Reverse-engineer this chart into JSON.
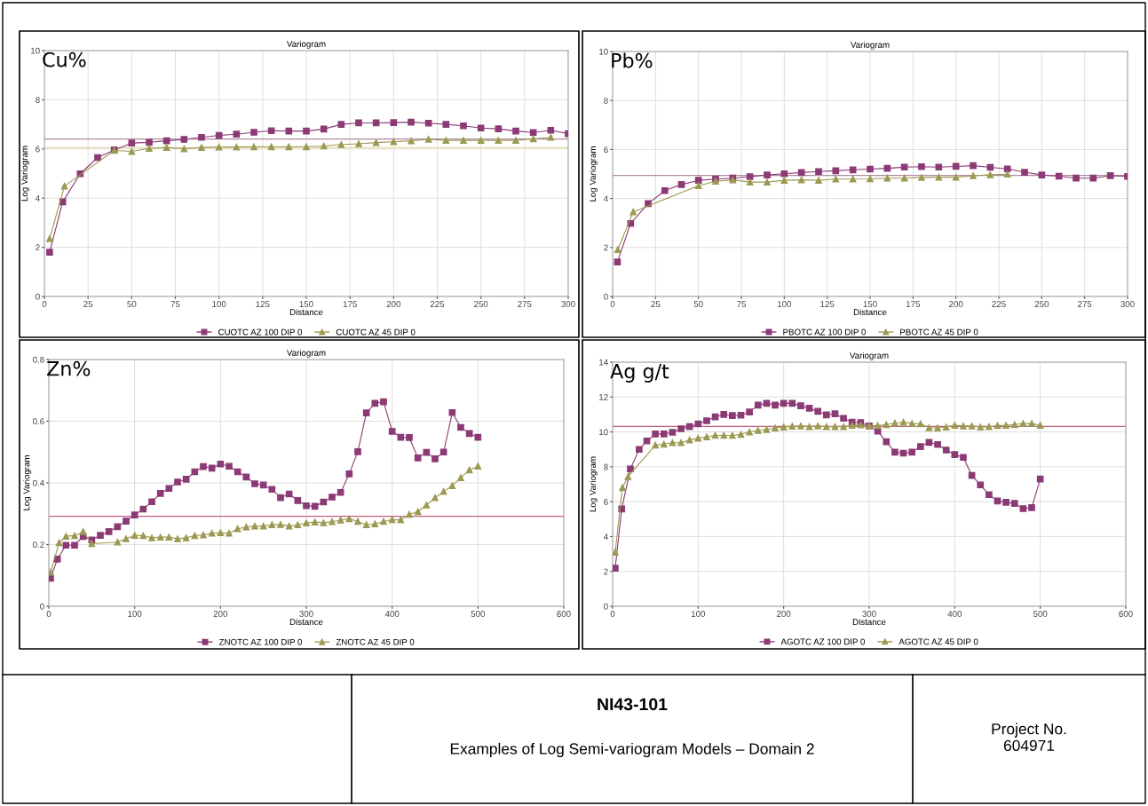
{
  "chart_data": [
    {
      "type": "line",
      "title": "Variogram",
      "xlabel": "Distance",
      "ylabel": "Log Variogram",
      "annotations": [
        "Cu%"
      ],
      "xlim": [
        0,
        300
      ],
      "xticks": [
        0,
        25,
        50,
        75,
        100,
        125,
        150,
        175,
        200,
        225,
        250,
        275,
        300
      ],
      "ylim": [
        0,
        10
      ],
      "yticks": [
        0,
        2,
        4,
        6,
        8,
        10
      ],
      "grid": true,
      "legend": "bottom",
      "line_style": "solid",
      "series": [
        {
          "name": "CUOTC AZ 100 DIP 0",
          "color": "#8b3a75",
          "marker": "square",
          "x": [
            3,
            10.5,
            20.5,
            30.5,
            40,
            50,
            60,
            70,
            80,
            90,
            100,
            110,
            120,
            130,
            140,
            150,
            160,
            170,
            180,
            190,
            200,
            210,
            220,
            230,
            240,
            250,
            260,
            270,
            280,
            290,
            300
          ],
          "values": [
            1.8,
            3.85,
            4.99,
            5.65,
            5.96,
            6.24,
            6.27,
            6.33,
            6.39,
            6.47,
            6.55,
            6.6,
            6.68,
            6.74,
            6.73,
            6.73,
            6.81,
            7.0,
            7.06,
            7.06,
            7.07,
            7.09,
            7.05,
            7.0,
            6.94,
            6.85,
            6.82,
            6.73,
            6.67,
            6.76,
            6.62
          ]
        },
        {
          "name": "CUOTC AZ 45 DIP 0",
          "color": "#9c9a52",
          "marker": "triangle",
          "x": [
            3,
            11.5,
            40,
            50,
            60,
            70,
            80,
            90,
            100,
            110,
            120,
            130,
            140,
            150,
            160,
            170,
            180,
            190,
            200,
            210,
            220,
            230,
            240,
            250,
            260,
            270,
            280,
            290
          ],
          "values": [
            2.35,
            4.49,
            5.94,
            5.9,
            6.02,
            6.06,
            6.0,
            6.06,
            6.08,
            6.08,
            6.09,
            6.09,
            6.09,
            6.09,
            6.12,
            6.18,
            6.21,
            6.26,
            6.29,
            6.33,
            6.39,
            6.35,
            6.35,
            6.35,
            6.35,
            6.35,
            6.41,
            6.47
          ]
        }
      ],
      "ref_lines": [
        {
          "axis": "y",
          "value": 6.4,
          "color": "#b08aa0"
        },
        {
          "axis": "y",
          "value": 6.05,
          "color": "#e6dca8"
        }
      ]
    },
    {
      "type": "line",
      "title": "Variogram",
      "xlabel": "Distance",
      "ylabel": "Log Variogram",
      "annotations": [
        "Pb%"
      ],
      "xlim": [
        0,
        300
      ],
      "xticks": [
        0,
        25,
        50,
        75,
        100,
        125,
        150,
        175,
        200,
        225,
        250,
        275,
        300
      ],
      "ylim": [
        0,
        10
      ],
      "yticks": [
        0,
        2,
        4,
        6,
        8,
        10
      ],
      "grid": true,
      "legend": "bottom",
      "line_style": "solid",
      "series": [
        {
          "name": "PBOTC AZ 100 DIP 0",
          "color": "#8b3a75",
          "marker": "square",
          "x": [
            2.8,
            10.5,
            20.7,
            30.4,
            40.1,
            50,
            60,
            70,
            80,
            90,
            100,
            110,
            120,
            130,
            140,
            150,
            160,
            170,
            180,
            190,
            200,
            210,
            220,
            230,
            240,
            250,
            260,
            270,
            280,
            290,
            300
          ],
          "values": [
            1.41,
            2.98,
            3.79,
            4.32,
            4.57,
            4.74,
            4.79,
            4.83,
            4.89,
            4.96,
            5.01,
            5.06,
            5.1,
            5.13,
            5.17,
            5.2,
            5.23,
            5.28,
            5.3,
            5.28,
            5.31,
            5.34,
            5.27,
            5.21,
            5.07,
            4.96,
            4.91,
            4.83,
            4.83,
            4.93,
            4.9
          ]
        },
        {
          "name": "PBOTC AZ 45 DIP 0",
          "color": "#9c9a52",
          "marker": "triangle",
          "x": [
            3,
            12,
            50,
            60,
            70,
            80,
            90,
            100,
            110,
            120,
            130,
            140,
            150,
            160,
            170,
            180,
            190,
            200,
            210,
            220,
            230
          ],
          "values": [
            1.91,
            3.45,
            4.52,
            4.7,
            4.76,
            4.67,
            4.67,
            4.74,
            4.76,
            4.74,
            4.79,
            4.79,
            4.8,
            4.83,
            4.83,
            4.86,
            4.87,
            4.87,
            4.93,
            4.97,
            4.99
          ]
        }
      ],
      "ref_lines": [
        {
          "axis": "y",
          "value": 4.94,
          "color": "#b08aa0"
        }
      ]
    },
    {
      "type": "line",
      "title": "Variogram",
      "xlabel": "Distance",
      "ylabel": "Log Variogram",
      "annotations": [
        "Zn%"
      ],
      "xlim": [
        0,
        600
      ],
      "xticks": [
        0,
        100,
        200,
        300,
        400,
        500,
        600
      ],
      "ylim": [
        0,
        0.8
      ],
      "yticks": [
        0,
        0.2,
        0.4,
        0.6,
        0.8
      ],
      "grid": true,
      "legend": "bottom",
      "line_style": "solid",
      "series": [
        {
          "name": "ZNOTC AZ 100 DIP 0",
          "color": "#8b3a75",
          "marker": "square",
          "x": [
            2,
            10,
            20,
            30,
            40,
            50,
            60,
            70,
            80,
            90,
            100,
            110,
            120,
            130,
            140,
            150,
            160,
            170,
            180,
            190,
            200,
            210,
            220,
            230,
            240,
            250,
            260,
            270,
            280,
            290,
            300,
            310,
            320,
            330,
            340,
            350,
            360,
            370,
            380,
            390,
            400,
            410,
            420,
            430,
            440,
            450,
            460,
            470,
            480,
            490,
            500
          ],
          "values": [
            0.091,
            0.153,
            0.198,
            0.198,
            0.226,
            0.215,
            0.23,
            0.242,
            0.258,
            0.276,
            0.296,
            0.315,
            0.339,
            0.366,
            0.382,
            0.403,
            0.412,
            0.436,
            0.453,
            0.448,
            0.461,
            0.454,
            0.436,
            0.419,
            0.397,
            0.393,
            0.379,
            0.352,
            0.364,
            0.343,
            0.326,
            0.324,
            0.338,
            0.354,
            0.369,
            0.429,
            0.501,
            0.627,
            0.658,
            0.663,
            0.567,
            0.548,
            0.547,
            0.481,
            0.499,
            0.478,
            0.5,
            0.628,
            0.58,
            0.56,
            0.548
          ]
        },
        {
          "name": "ZNOTC AZ 45 DIP 0",
          "color": "#9c9a52",
          "marker": "triangle",
          "x": [
            2,
            12,
            20,
            30,
            40,
            50,
            80,
            90,
            100,
            110,
            120,
            130,
            140,
            150,
            160,
            170,
            180,
            190,
            200,
            210,
            220,
            230,
            240,
            250,
            260,
            270,
            280,
            290,
            300,
            310,
            320,
            330,
            340,
            350,
            360,
            370,
            380,
            390,
            400,
            410,
            420,
            430,
            440,
            450,
            460,
            470,
            480,
            490,
            500
          ],
          "values": [
            0.11,
            0.206,
            0.227,
            0.229,
            0.242,
            0.203,
            0.208,
            0.219,
            0.23,
            0.229,
            0.222,
            0.224,
            0.224,
            0.219,
            0.222,
            0.229,
            0.231,
            0.237,
            0.238,
            0.237,
            0.251,
            0.257,
            0.26,
            0.26,
            0.264,
            0.265,
            0.26,
            0.264,
            0.27,
            0.273,
            0.271,
            0.274,
            0.279,
            0.284,
            0.275,
            0.264,
            0.267,
            0.275,
            0.281,
            0.28,
            0.298,
            0.307,
            0.328,
            0.352,
            0.372,
            0.391,
            0.417,
            0.442,
            0.454
          ]
        }
      ],
      "ref_lines": [
        {
          "axis": "y",
          "value": 0.292,
          "color": "#c06080"
        }
      ]
    },
    {
      "type": "line",
      "title": "Variogram",
      "xlabel": "Distance",
      "ylabel": "Log Variogram",
      "annotations": [
        "Ag g/t"
      ],
      "xlim": [
        0,
        600
      ],
      "xticks": [
        0,
        100,
        200,
        300,
        400,
        500,
        600
      ],
      "ylim": [
        0,
        14
      ],
      "yticks": [
        0,
        2,
        4,
        6,
        8,
        10,
        12,
        14
      ],
      "grid": true,
      "legend": "bottom",
      "line_style": "solid",
      "series": [
        {
          "name": "AGOTC AZ 100 DIP 0",
          "color": "#8b3a75",
          "marker": "square",
          "x": [
            3,
            10.6,
            20.8,
            31,
            40,
            50,
            60,
            70,
            80,
            90,
            100,
            110,
            120,
            130,
            140,
            150,
            160,
            170,
            180,
            190,
            200,
            210,
            220,
            230,
            240,
            250,
            260,
            270,
            280,
            290,
            300,
            310,
            320,
            330,
            340,
            350,
            360,
            370,
            380,
            390,
            400,
            410,
            420,
            430,
            440,
            450,
            460,
            470,
            480,
            490,
            500
          ],
          "values": [
            2.18,
            5.58,
            7.88,
            9.0,
            9.48,
            9.88,
            9.88,
            9.98,
            10.18,
            10.3,
            10.46,
            10.64,
            10.86,
            11.0,
            10.94,
            10.96,
            11.14,
            11.54,
            11.64,
            11.54,
            11.64,
            11.64,
            11.5,
            11.36,
            11.18,
            10.98,
            11.04,
            10.78,
            10.56,
            10.54,
            10.34,
            10.04,
            9.44,
            8.84,
            8.78,
            8.84,
            9.16,
            9.4,
            9.28,
            8.96,
            8.7,
            8.54,
            7.5,
            6.96,
            6.4,
            6.04,
            5.96,
            5.9,
            5.6,
            5.66,
            7.3
          ]
        },
        {
          "name": "AGOTC AZ 45 DIP 0",
          "color": "#9c9a52",
          "marker": "triangle",
          "x": [
            3,
            11.4,
            18,
            50,
            60,
            70,
            80,
            90,
            100,
            110,
            120,
            130,
            140,
            150,
            160,
            170,
            180,
            190,
            200,
            210,
            220,
            230,
            240,
            250,
            260,
            270,
            280,
            290,
            300,
            310,
            320,
            330,
            340,
            350,
            360,
            370,
            380,
            390,
            400,
            410,
            420,
            430,
            440,
            450,
            460,
            470,
            480,
            490,
            500
          ],
          "values": [
            3.1,
            6.8,
            7.44,
            9.24,
            9.3,
            9.38,
            9.38,
            9.54,
            9.64,
            9.72,
            9.8,
            9.8,
            9.8,
            9.86,
            10.0,
            10.08,
            10.14,
            10.22,
            10.28,
            10.32,
            10.34,
            10.3,
            10.34,
            10.3,
            10.3,
            10.3,
            10.38,
            10.4,
            10.36,
            10.36,
            10.42,
            10.5,
            10.56,
            10.48,
            10.46,
            10.24,
            10.22,
            10.28,
            10.38,
            10.34,
            10.34,
            10.28,
            10.3,
            10.36,
            10.38,
            10.42,
            10.48,
            10.48,
            10.38
          ]
        }
      ],
      "ref_lines": [
        {
          "axis": "y",
          "value": 10.32,
          "color": "#c06080"
        }
      ]
    },
    {
      "type": "other",
      "title": "NI43-101",
      "annotations": [
        "Examples of Log Semi-variogram Models – Domain 2",
        "Project No.\n604971"
      ]
    }
  ]
}
